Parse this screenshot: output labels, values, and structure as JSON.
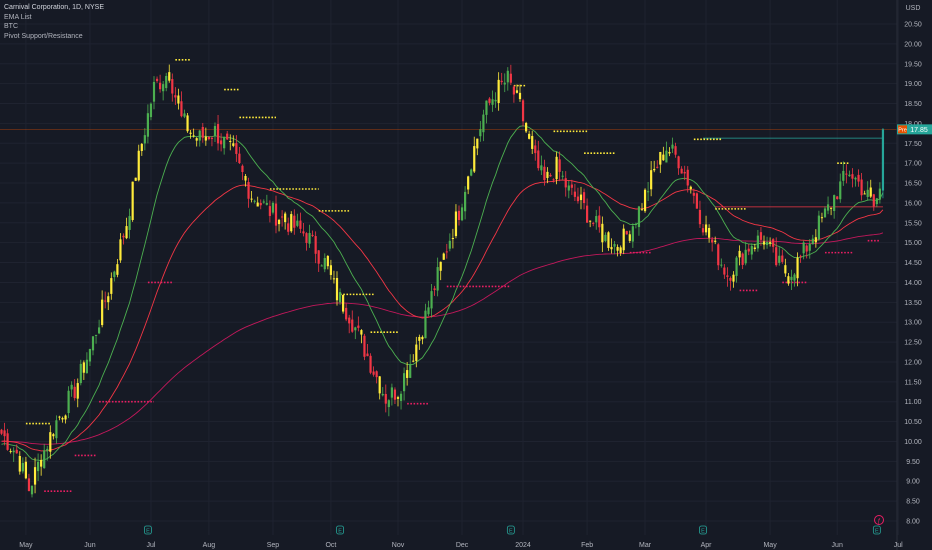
{
  "legend": {
    "symbol": "Carnival Corporation, 1D, NYSE",
    "ind1": "EMA List",
    "ind2": "BTC",
    "ind3": "Pivot Support/Resistance"
  },
  "currency": "USD",
  "price_tag": {
    "label": "Pre",
    "value": "17.85"
  },
  "chart_data": {
    "type": "candlestick",
    "title": "Carnival Corporation, 1D, NYSE",
    "y_axis_label": "USD",
    "ylim": [
      7.8,
      20.6
    ],
    "y_ticks": [
      "8.00",
      "8.50",
      "9.00",
      "9.50",
      "10.00",
      "10.50",
      "11.00",
      "11.50",
      "12.00",
      "12.50",
      "13.00",
      "13.50",
      "14.00",
      "14.50",
      "15.00",
      "15.50",
      "16.00",
      "16.50",
      "17.00",
      "17.50",
      "18.00",
      "18.50",
      "19.00",
      "19.50",
      "20.00",
      "20.50"
    ],
    "x_ticks": [
      {
        "label": "May",
        "index": 8
      },
      {
        "label": "Jun",
        "index": 29
      },
      {
        "label": "Jul",
        "index": 49
      },
      {
        "label": "Aug",
        "index": 68
      },
      {
        "label": "Sep",
        "index": 89
      },
      {
        "label": "Oct",
        "index": 108
      },
      {
        "label": "Nov",
        "index": 130
      },
      {
        "label": "Dec",
        "index": 151
      },
      {
        "label": "2024",
        "index": 171
      },
      {
        "label": "Feb",
        "index": 192
      },
      {
        "label": "Mar",
        "index": 211
      },
      {
        "label": "Apr",
        "index": 231
      },
      {
        "label": "May",
        "index": 252
      },
      {
        "label": "Jun",
        "index": 274
      },
      {
        "label": "Jul",
        "index": 294
      }
    ],
    "earnings_marker_indices": [
      48,
      111,
      167,
      230,
      287
    ],
    "anchors": [
      [
        0,
        10.2
      ],
      [
        5,
        9.7
      ],
      [
        9,
        8.8
      ],
      [
        13,
        9.6
      ],
      [
        18,
        10.5
      ],
      [
        24,
        11.3
      ],
      [
        29,
        12.3
      ],
      [
        35,
        13.8
      ],
      [
        41,
        15.5
      ],
      [
        46,
        17.5
      ],
      [
        50,
        18.9
      ],
      [
        55,
        19.3
      ],
      [
        59,
        18.1
      ],
      [
        64,
        17.6
      ],
      [
        70,
        17.8
      ],
      [
        76,
        17.2
      ],
      [
        82,
        16.2
      ],
      [
        88,
        15.8
      ],
      [
        94,
        15.5
      ],
      [
        100,
        15.2
      ],
      [
        106,
        14.5
      ],
      [
        110,
        13.7
      ],
      [
        114,
        13.2
      ],
      [
        118,
        12.5
      ],
      [
        122,
        11.8
      ],
      [
        126,
        11.1
      ],
      [
        130,
        11.3
      ],
      [
        134,
        12.0
      ],
      [
        138,
        12.9
      ],
      [
        142,
        13.9
      ],
      [
        146,
        14.9
      ],
      [
        150,
        15.8
      ],
      [
        154,
        17.1
      ],
      [
        158,
        18.2
      ],
      [
        162,
        18.8
      ],
      [
        166,
        19.1
      ],
      [
        170,
        18.4
      ],
      [
        174,
        17.2
      ],
      [
        178,
        16.5
      ],
      [
        182,
        16.9
      ],
      [
        186,
        16.3
      ],
      [
        190,
        16.0
      ],
      [
        194,
        15.5
      ],
      [
        198,
        15.1
      ],
      [
        202,
        14.9
      ],
      [
        206,
        15.3
      ],
      [
        210,
        16.0
      ],
      [
        214,
        16.8
      ],
      [
        218,
        17.4
      ],
      [
        222,
        17.1
      ],
      [
        226,
        16.4
      ],
      [
        230,
        15.5
      ],
      [
        234,
        14.8
      ],
      [
        238,
        14.2
      ],
      [
        242,
        14.6
      ],
      [
        246,
        15.0
      ],
      [
        250,
        15.1
      ],
      [
        254,
        14.5
      ],
      [
        258,
        14.2
      ],
      [
        262,
        14.6
      ],
      [
        266,
        15.2
      ],
      [
        270,
        15.7
      ],
      [
        274,
        16.3
      ],
      [
        278,
        16.8
      ],
      [
        282,
        16.4
      ],
      [
        286,
        15.9
      ],
      [
        288,
        16.3
      ],
      [
        289,
        17.6
      ]
    ],
    "last_close": 17.85,
    "ema_fast_color": "#4caf50",
    "ema_mid_color": "#f23645",
    "ema_slow_color": "#c2185b",
    "ema_periods": [
      20,
      50,
      200
    ],
    "pivot_resistance_color": "#ffeb3b",
    "pivot_support_color": "#e91e63",
    "pivot_resistance": [
      {
        "y": 10.45,
        "x0": 8,
        "x1": 16
      },
      {
        "y": 19.6,
        "x0": 57,
        "x1": 62
      },
      {
        "y": 18.85,
        "x0": 73,
        "x1": 78
      },
      {
        "y": 18.15,
        "x0": 78,
        "x1": 90
      },
      {
        "y": 16.35,
        "x0": 88,
        "x1": 104
      },
      {
        "y": 15.8,
        "x0": 104,
        "x1": 114
      },
      {
        "y": 13.7,
        "x0": 111,
        "x1": 122
      },
      {
        "y": 12.75,
        "x0": 121,
        "x1": 130
      },
      {
        "y": 18.95,
        "x0": 168,
        "x1": 172
      },
      {
        "y": 17.8,
        "x0": 181,
        "x1": 192
      },
      {
        "y": 17.25,
        "x0": 191,
        "x1": 201
      },
      {
        "y": 17.6,
        "x0": 227,
        "x1": 236
      },
      {
        "y": 15.85,
        "x0": 234,
        "x1": 244
      },
      {
        "y": 17.0,
        "x0": 274,
        "x1": 278
      }
    ],
    "pivot_support": [
      {
        "y": 8.75,
        "x0": 14,
        "x1": 23
      },
      {
        "y": 9.65,
        "x0": 24,
        "x1": 31
      },
      {
        "y": 14.0,
        "x0": 48,
        "x1": 56
      },
      {
        "y": 11.0,
        "x0": 32,
        "x1": 50
      },
      {
        "y": 10.95,
        "x0": 133,
        "x1": 140
      },
      {
        "y": 13.9,
        "x0": 146,
        "x1": 167
      },
      {
        "y": 14.75,
        "x0": 206,
        "x1": 213
      },
      {
        "y": 13.8,
        "x0": 242,
        "x1": 248
      },
      {
        "y": 14.0,
        "x0": 256,
        "x1": 264
      },
      {
        "y": 14.75,
        "x0": 270,
        "x1": 279
      },
      {
        "y": 15.05,
        "x0": 284,
        "x1": 288
      }
    ],
    "horizontal_lines": [
      {
        "y": 17.63,
        "x0": 230,
        "x1": 289,
        "color": "#26a69a"
      },
      {
        "y": 15.9,
        "x0": 234,
        "x1": 289,
        "color": "#f23645"
      }
    ],
    "grid": true
  }
}
